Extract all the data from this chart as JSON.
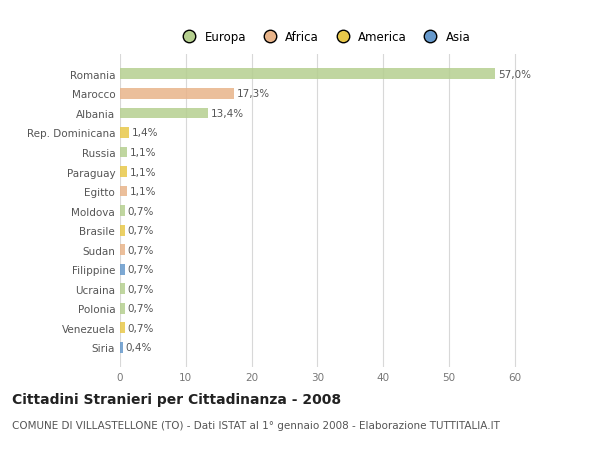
{
  "countries": [
    "Romania",
    "Marocco",
    "Albania",
    "Rep. Dominicana",
    "Russia",
    "Paraguay",
    "Egitto",
    "Moldova",
    "Brasile",
    "Sudan",
    "Filippine",
    "Ucraina",
    "Polonia",
    "Venezuela",
    "Siria"
  ],
  "values": [
    57.0,
    17.3,
    13.4,
    1.4,
    1.1,
    1.1,
    1.1,
    0.7,
    0.7,
    0.7,
    0.7,
    0.7,
    0.7,
    0.7,
    0.4
  ],
  "labels": [
    "57,0%",
    "17,3%",
    "13,4%",
    "1,4%",
    "1,1%",
    "1,1%",
    "1,1%",
    "0,7%",
    "0,7%",
    "0,7%",
    "0,7%",
    "0,7%",
    "0,7%",
    "0,7%",
    "0,4%"
  ],
  "continents": [
    "Europa",
    "Africa",
    "Europa",
    "America",
    "Europa",
    "America",
    "Africa",
    "Europa",
    "America",
    "Africa",
    "Asia",
    "Europa",
    "Europa",
    "America",
    "Asia"
  ],
  "continent_colors": {
    "Europa": "#b5cf8f",
    "Africa": "#e8b48a",
    "America": "#e8c84a",
    "Asia": "#6699cc"
  },
  "legend_order": [
    "Europa",
    "Africa",
    "America",
    "Asia"
  ],
  "title": "Cittadini Stranieri per Cittadinanza - 2008",
  "subtitle": "COMUNE DI VILLASTELLONE (TO) - Dati ISTAT al 1° gennaio 2008 - Elaborazione TUTTITALIA.IT",
  "xlim": [
    0,
    62
  ],
  "xticks": [
    0,
    10,
    20,
    30,
    40,
    50,
    60
  ],
  "figure_bg": "#ffffff",
  "plot_bg": "#ffffff",
  "grid_color": "#d8d8d8",
  "bar_height": 0.55,
  "title_fontsize": 10,
  "subtitle_fontsize": 7.5,
  "tick_fontsize": 7.5,
  "label_fontsize": 7.5,
  "legend_fontsize": 8.5
}
